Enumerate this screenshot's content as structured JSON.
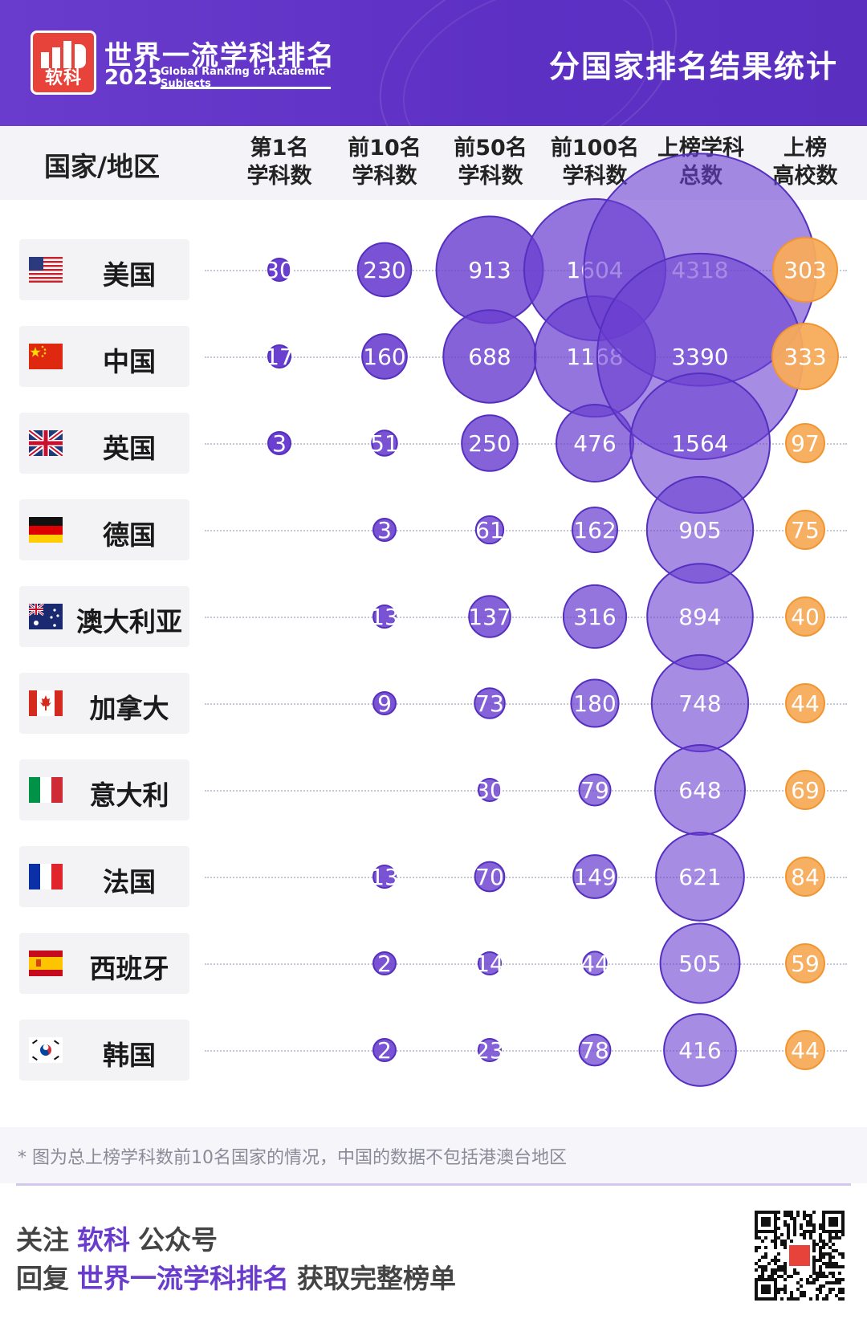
{
  "header": {
    "logo_text": "软科",
    "brand_cn": "世界一流学科排名",
    "brand_year": "2023",
    "brand_en": "Global Ranking of Academic Subjects",
    "title": "分国家排名结果统计"
  },
  "table": {
    "country_header": "国家/地区",
    "columns": [
      "第1名\n学科数",
      "前10名\n学科数",
      "前50名\n学科数",
      "前100名\n学科数",
      "上榜学科\n总数",
      "上榜\n高校数"
    ]
  },
  "colors": {
    "purple_fill": "#6b40d0",
    "purple_stroke": "#5530c0",
    "orange_fill": "#f7ab5a",
    "orange_stroke": "#f19530"
  },
  "chart_data": {
    "type": "bubble-table",
    "categories": [
      "美国",
      "中国",
      "英国",
      "德国",
      "澳大利亚",
      "加拿大",
      "意大利",
      "法国",
      "西班牙",
      "韩国"
    ],
    "flags": [
      "us-flag",
      "cn-flag",
      "gb-flag",
      "de-flag",
      "au-flag",
      "ca-flag",
      "it-flag",
      "fr-flag",
      "es-flag",
      "kr-flag"
    ],
    "series": [
      {
        "name": "第1名学科数",
        "values": [
          30,
          17,
          3,
          null,
          null,
          null,
          null,
          null,
          null,
          null
        ]
      },
      {
        "name": "前10名学科数",
        "values": [
          230,
          160,
          51,
          3,
          13,
          9,
          null,
          13,
          2,
          2
        ]
      },
      {
        "name": "前50名学科数",
        "values": [
          913,
          688,
          250,
          61,
          137,
          73,
          30,
          70,
          14,
          23
        ]
      },
      {
        "name": "前100名学科数",
        "values": [
          1604,
          1168,
          476,
          162,
          316,
          180,
          79,
          149,
          44,
          78
        ]
      },
      {
        "name": "上榜学科总数",
        "values": [
          4318,
          3390,
          1564,
          905,
          894,
          748,
          648,
          621,
          505,
          416
        ]
      },
      {
        "name": "上榜高校数",
        "values": [
          303,
          333,
          97,
          75,
          40,
          44,
          69,
          84,
          59,
          44
        ]
      }
    ]
  },
  "footnote": "* 图为总上榜学科数前10名国家的情况，中国的数据不包括港澳台地区",
  "footer": {
    "line1_pre": "关注",
    "line1_accent": "软科",
    "line1_post": "公众号",
    "line2_pre": "回复",
    "line2_accent": "世界一流学科排名",
    "line2_post": "获取完整榜单"
  }
}
